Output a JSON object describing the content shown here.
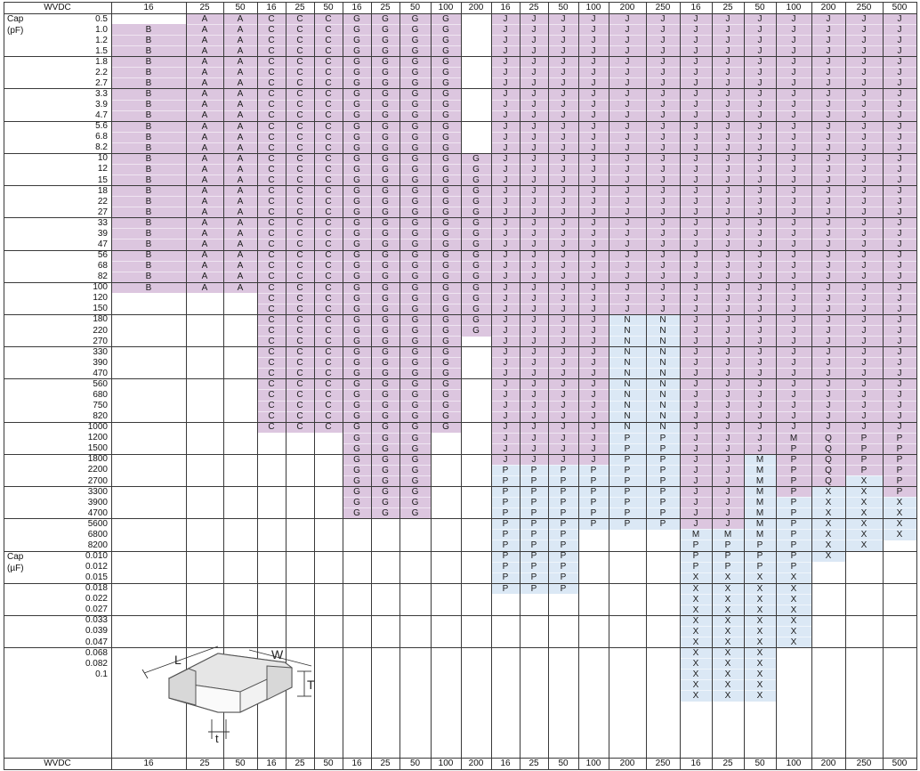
{
  "header": {
    "wvdc_label": "WVDC",
    "voltages": [
      "16",
      "25",
      "50",
      "16",
      "25",
      "50",
      "16",
      "25",
      "50",
      "100",
      "200",
      "16",
      "25",
      "50",
      "100",
      "200",
      "250",
      "16",
      "25",
      "50",
      "100",
      "200",
      "250",
      "500"
    ]
  },
  "axis_labels": {
    "cap_pf": [
      "Cap",
      "(pF)"
    ],
    "cap_uf": [
      "Cap",
      "(µF)"
    ]
  },
  "capacitances": [
    "0.5",
    "1.0",
    "1.2",
    "1.5",
    "1.8",
    "2.2",
    "2.7",
    "3.3",
    "3.9",
    "4.7",
    "5.6",
    "6.8",
    "8.2",
    "10",
    "12",
    "15",
    "18",
    "22",
    "27",
    "33",
    "39",
    "47",
    "56",
    "68",
    "82",
    "100",
    "120",
    "150",
    "180",
    "220",
    "270",
    "330",
    "390",
    "470",
    "560",
    "680",
    "750",
    "820",
    "1000",
    "1200",
    "1500",
    "1800",
    "2200",
    "2700",
    "3300",
    "3900",
    "4700",
    "5600",
    "6800",
    "8200",
    "0.010",
    "0.012",
    "0.015",
    "0.018",
    "0.022",
    "0.027",
    "0.033",
    "0.039",
    "0.047",
    "0.068",
    "0.082",
    "0.1"
  ],
  "columns": [
    {
      "v": "16",
      "first": 1,
      "codes": "BBBBBBBBBBBBBBBBBBBBBBBBB"
    },
    {
      "v": "25",
      "first": 0,
      "codes": "AAAAAAAAAAAAAAAAAAAAAAAAAA"
    },
    {
      "v": "50",
      "first": 0,
      "codes": "AAAAAAAAAAAAAAAAAAAAAAAAAA"
    },
    {
      "v": "16",
      "first": 0,
      "codes": "CCCCCCCCCCCCCCCCCCCCCCCCCCCCCCCCCCCCCCC"
    },
    {
      "v": "25",
      "first": 0,
      "codes": "CCCCCCCCCCCCCCCCCCCCCCCCCCCCCCCCCCCCCCC"
    },
    {
      "v": "50",
      "first": 0,
      "codes": "CCCCCCCCCCCCCCCCCCCCCCCCCCCCCCCCCCCCCCC"
    },
    {
      "v": "16",
      "first": 0,
      "codes": "GGGGGGGGGGGGGGGGGGGGGGGGGGGGGGGGGGGGGGGGGGGGGGG"
    },
    {
      "v": "25",
      "first": 0,
      "codes": "GGGGGGGGGGGGGGGGGGGGGGGGGGGGGGGGGGGGGGGGGGGGGGG"
    },
    {
      "v": "50",
      "first": 0,
      "codes": "GGGGGGGGGGGGGGGGGGGGGGGGGGGGGGGGGGGGGGGGGGGGGGG"
    },
    {
      "v": "100",
      "first": 0,
      "codes": "GGGGGGGGGGGGGGGGGGGGGGGGGGGGGGGGGGGGGGG"
    },
    {
      "v": "200",
      "first": 13,
      "codes": "GGGGGGGGGGGGGGGGG"
    },
    {
      "v": "16",
      "first": 0,
      "codes": "JJJJJJJJJJJJJJJJJJJJJJJJJJJJJJJJJJJJJJJJJJPPPPPPPPPPPP"
    },
    {
      "v": "25",
      "first": 0,
      "codes": "JJJJJJJJJJJJJJJJJJJJJJJJJJJJJJJJJJJJJJJJJJPPPPPPPPPPPP"
    },
    {
      "v": "50",
      "first": 0,
      "codes": "JJJJJJJJJJJJJJJJJJJJJJJJJJJJJJJJJJJJJJJJJJPPPPPPPPPPPP"
    },
    {
      "v": "100",
      "first": 0,
      "codes": "JJJJJJJJJJJJJJJJJJJJJJJJJJJJJJJJJJJJJJJJJJPPPPPP"
    },
    {
      "v": "200",
      "first": 0,
      "codes": "JJJJJJJJJJJJJJJJJJJJJJJJJJJJNNNNNNNNNNNPPPPPPPPP"
    },
    {
      "v": "250",
      "first": 0,
      "codes": "JJJJJJJJJJJJJJJJJJJJJJJJJJJJNNNNNNNNNNNPPPPPPPPP"
    },
    {
      "v": "16",
      "first": 0,
      "codes": "JJJJJJJJJJJJJJJJJJJJJJJJJJJJJJJJJJJJJJJJJJJJJJJJMPPPXXXXXXXXXXXX"
    },
    {
      "v": "25",
      "first": 0,
      "codes": "JJJJJJJJJJJJJJJJJJJJJJJJJJJJJJJJJJJJJJJJJJJJJJJJMPPPXXXXXXXXXXXX"
    },
    {
      "v": "50",
      "first": 0,
      "codes": "JJJJJJJJJJJJJJJJJJJJJJJJJJJJJJJJJJJJJJJJJMMMMMMMMPPPXXXXXXXXXXXX"
    },
    {
      "v": "100",
      "first": 0,
      "codes": "JJJJJJJJJJJJJJJJJJJJJJJJJJJJJJJJJJJJJJJMPPPPPPPPPPPPXXXXXXX"
    },
    {
      "v": "200",
      "first": 0,
      "codes": "JJJJJJJJJJJJJJJJJJJJJJJJJJJJJJJJJJJJJJJQQQQQXXXXXXX"
    },
    {
      "v": "250",
      "first": 0,
      "codes": "JJJJJJJJJJJJJJJJJJJJJJJJJJJJJJJJJJJJJJJPPPPXXXXXXX"
    },
    {
      "v": "500",
      "first": 0,
      "codes": "JJJJJJJJJJJJJJJJJJJJJJJJJJJJJJJJJJJJJJJPPPPPPXXXX"
    }
  ],
  "diagram": {
    "labels": [
      "L",
      "W",
      "T",
      "t"
    ]
  },
  "colors": {
    "purple": "#dcc6df",
    "blue": "#dbe8f5",
    "grid": "#3a3a3a"
  }
}
